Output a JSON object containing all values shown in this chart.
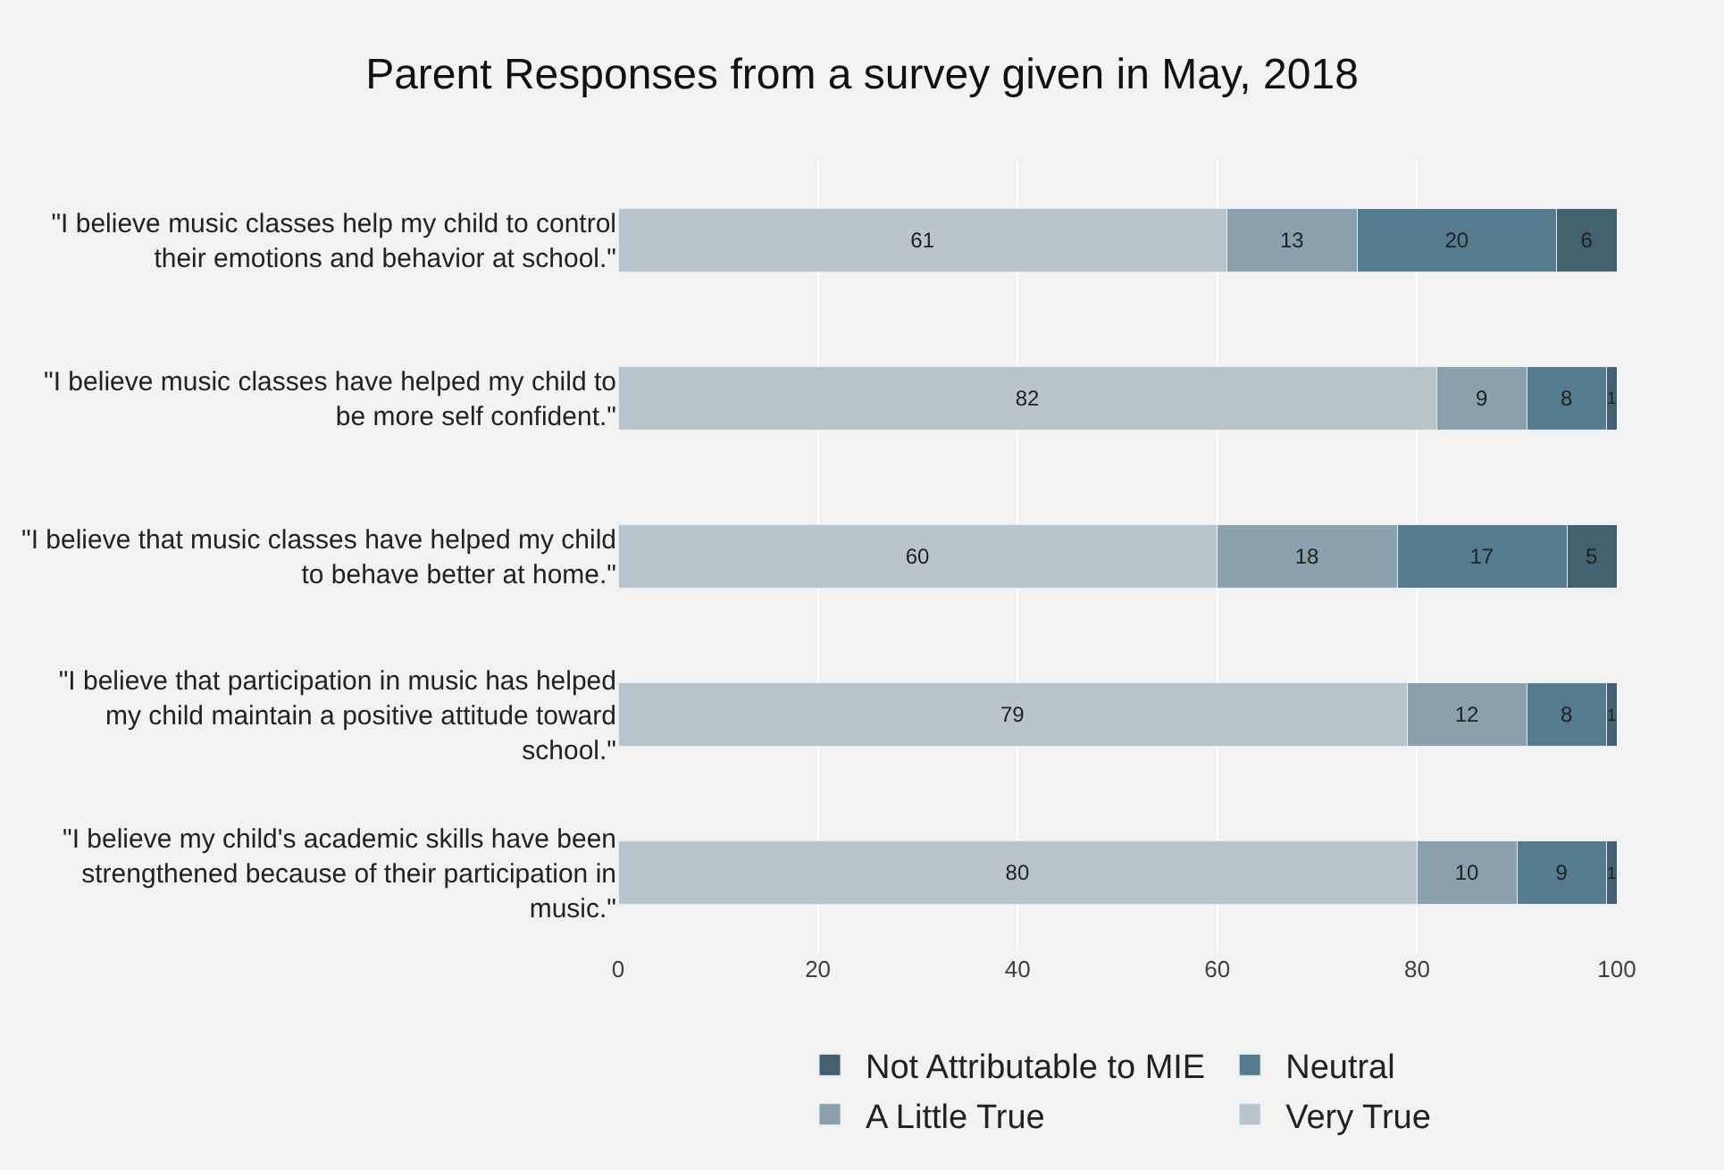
{
  "chart_data": {
    "type": "bar",
    "orientation": "horizontal",
    "stacked": true,
    "title": "Parent Responses from a survey given in May, 2018",
    "categories": [
      "\"I believe music classes help my child to control their emotions and behavior at school.\"",
      "\"I believe music classes have helped my child to be more self confident.\"",
      "\"I believe that music classes have helped my child to behave better at home.\"",
      "\"I believe that participation in music has helped my child maintain a positive attitude toward school.\"",
      "\"I believe my child's academic skills have been strengthened because of their participation in music.\""
    ],
    "series": [
      {
        "name": "Very True",
        "color": "#b9c4cb",
        "values": [
          61,
          82,
          60,
          79,
          80
        ]
      },
      {
        "name": "A Little True",
        "color": "#8aa0ac",
        "values": [
          13,
          9,
          18,
          12,
          10
        ]
      },
      {
        "name": "Neutral",
        "color": "#557b8f",
        "values": [
          20,
          8,
          17,
          8,
          9
        ]
      },
      {
        "name": "Not Attributable to MIE",
        "color": "#42606f",
        "values": [
          6,
          1,
          5,
          1,
          1
        ]
      }
    ],
    "xlim": [
      0,
      100
    ],
    "xticks": [
      0,
      20,
      40,
      60,
      80,
      100
    ],
    "grid": "x",
    "legend": "bottom",
    "data_labels": true
  }
}
